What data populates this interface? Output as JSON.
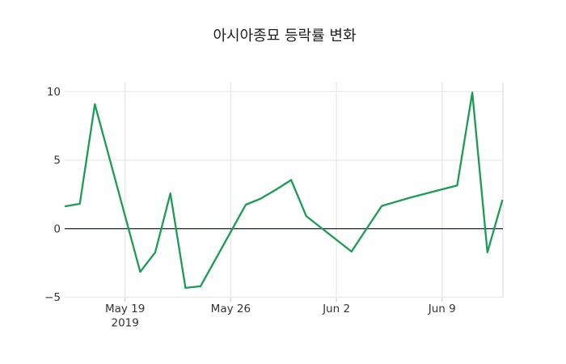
{
  "figure": {
    "background": "#ffffff"
  },
  "chart_data": {
    "type": "line",
    "title": "아시아종묘 등락률 변화",
    "xlabel": "",
    "ylabel": "",
    "grid": true,
    "zero_line": true,
    "legend": "none",
    "y_axis": {
      "range": [
        -5.05,
        10.65
      ],
      "ticks": [
        {
          "label": "10",
          "value": 10
        },
        {
          "label": "5",
          "value": 5
        },
        {
          "label": "0",
          "value": 0
        },
        {
          "label": "−5",
          "value": -5
        }
      ]
    },
    "x_axis": {
      "range_days": [
        0,
        29
      ],
      "ticks": [
        {
          "label": "May 19",
          "sublabel": "2019",
          "day": 4
        },
        {
          "label": "May 26",
          "sublabel": "",
          "day": 11
        },
        {
          "label": "Jun 2",
          "sublabel": "",
          "day": 18
        },
        {
          "label": "Jun 9",
          "sublabel": "",
          "day": 25
        }
      ]
    },
    "series": [
      {
        "name": "아시아종묘 등락률",
        "color": "#1b9c55",
        "points": [
          {
            "date": "May 15",
            "day": 0,
            "value": 1.63
          },
          {
            "date": "May 16",
            "day": 1,
            "value": 1.81
          },
          {
            "date": "May 17",
            "day": 2,
            "value": 9.08
          },
          {
            "date": "May 20",
            "day": 5,
            "value": -3.15
          },
          {
            "date": "May 21",
            "day": 6,
            "value": -1.72
          },
          {
            "date": "May 22",
            "day": 7,
            "value": 2.57
          },
          {
            "date": "May 23",
            "day": 8,
            "value": -4.32
          },
          {
            "date": "May 24",
            "day": 9,
            "value": -4.2
          },
          {
            "date": "May 27",
            "day": 12,
            "value": 1.75
          },
          {
            "date": "May 28",
            "day": 13,
            "value": 2.2
          },
          {
            "date": "May 29",
            "day": 14,
            "value": 2.85
          },
          {
            "date": "May 30",
            "day": 15,
            "value": 3.55
          },
          {
            "date": "May 31",
            "day": 16,
            "value": 0.92
          },
          {
            "date": "Jun 3",
            "day": 19,
            "value": -1.67
          },
          {
            "date": "Jun 4",
            "day": 20,
            "value": 0.0
          },
          {
            "date": "Jun 5",
            "day": 21,
            "value": 1.66
          },
          {
            "date": "Jun 7",
            "day": 23,
            "value": 2.3
          },
          {
            "date": "Jun 10",
            "day": 26,
            "value": 3.15
          },
          {
            "date": "Jun 11",
            "day": 27,
            "value": 9.93
          },
          {
            "date": "Jun 12",
            "day": 28,
            "value": -1.72
          },
          {
            "date": "Jun 13",
            "day": 29,
            "value": 2.1
          }
        ]
      }
    ],
    "colors": {
      "background": "#ffffff",
      "grid_line": "#e7e7e7",
      "plot_border_right": "#e0e0e0",
      "zero_line": "#30363f",
      "tick_mark": "#cccccc",
      "tick_text": "#333333",
      "title_text": "#1c1c1c"
    }
  }
}
